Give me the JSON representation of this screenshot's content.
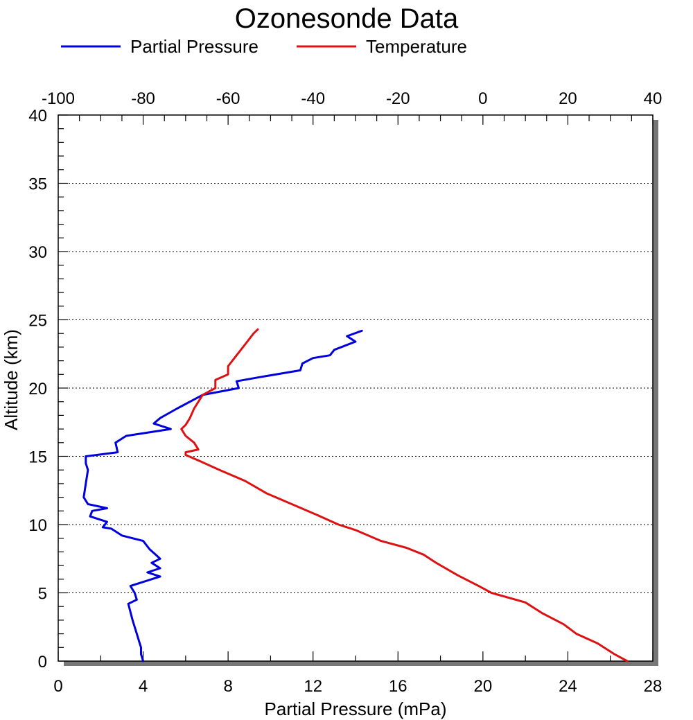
{
  "chart_data": {
    "type": "line",
    "title": "Ozonesonde Data",
    "xlabel": "Partial Pressure (mPa)",
    "ylabel": "Altitude (km)",
    "xlim": [
      0,
      28
    ],
    "x2lim": [
      -100,
      40
    ],
    "ylim": [
      0,
      40
    ],
    "x_ticks": [
      "0",
      "4",
      "8",
      "12",
      "16",
      "20",
      "24",
      "28"
    ],
    "x2_ticks": [
      "-100",
      "-80",
      "-60",
      "-40",
      "-20",
      "0",
      "20",
      "40"
    ],
    "y_ticks": [
      "0",
      "5",
      "10",
      "15",
      "20",
      "25",
      "30",
      "35",
      "40"
    ],
    "grid": "horizontal dotted at major y ticks",
    "legend_position": "top-left",
    "series": [
      {
        "name": "Partial Pressure",
        "color": "#0000dd",
        "axis": "bottom",
        "points": [
          [
            4.0,
            0
          ],
          [
            3.9,
            0.5
          ],
          [
            3.9,
            1.0
          ],
          [
            3.8,
            1.5
          ],
          [
            3.7,
            2.0
          ],
          [
            3.5,
            3.0
          ],
          [
            3.3,
            4.2
          ],
          [
            3.7,
            4.5
          ],
          [
            3.6,
            5.0
          ],
          [
            3.4,
            5.5
          ],
          [
            4.8,
            6.2
          ],
          [
            4.2,
            6.5
          ],
          [
            4.8,
            6.8
          ],
          [
            4.4,
            7.2
          ],
          [
            4.8,
            7.5
          ],
          [
            4.3,
            8.2
          ],
          [
            4.0,
            8.8
          ],
          [
            3.0,
            9.2
          ],
          [
            2.5,
            9.7
          ],
          [
            2.1,
            9.8
          ],
          [
            2.3,
            10.2
          ],
          [
            1.5,
            10.6
          ],
          [
            1.6,
            11.0
          ],
          [
            2.3,
            11.2
          ],
          [
            1.4,
            11.5
          ],
          [
            1.2,
            12.0
          ],
          [
            1.3,
            13.0
          ],
          [
            1.4,
            14.0
          ],
          [
            1.3,
            14.5
          ],
          [
            1.3,
            15.0
          ],
          [
            2.8,
            15.3
          ],
          [
            2.7,
            16.0
          ],
          [
            3.2,
            16.5
          ],
          [
            5.3,
            17.0
          ],
          [
            4.5,
            17.4
          ],
          [
            4.8,
            17.8
          ],
          [
            5.6,
            18.5
          ],
          [
            6.8,
            19.5
          ],
          [
            8.5,
            20.0
          ],
          [
            8.4,
            20.5
          ],
          [
            9.5,
            20.8
          ],
          [
            11.4,
            21.3
          ],
          [
            11.5,
            21.8
          ],
          [
            12.0,
            22.2
          ],
          [
            12.8,
            22.4
          ],
          [
            13.0,
            22.8
          ],
          [
            14.0,
            23.4
          ],
          [
            13.6,
            23.8
          ],
          [
            14.3,
            24.2
          ]
        ]
      },
      {
        "name": "Temperature",
        "color": "#dd1111",
        "axis": "top",
        "points": [
          [
            34.0,
            0
          ],
          [
            31.0,
            0.5
          ],
          [
            27.0,
            1.3
          ],
          [
            22.0,
            2.0
          ],
          [
            19.0,
            2.7
          ],
          [
            14.0,
            3.5
          ],
          [
            10.0,
            4.3
          ],
          [
            2.0,
            5.0
          ],
          [
            -1.0,
            5.5
          ],
          [
            -6.0,
            6.3
          ],
          [
            -11.0,
            7.2
          ],
          [
            -14.0,
            7.8
          ],
          [
            -18.0,
            8.3
          ],
          [
            -24.0,
            8.8
          ],
          [
            -30.0,
            9.6
          ],
          [
            -34.0,
            10.0
          ],
          [
            -39.0,
            10.7
          ],
          [
            -45.0,
            11.5
          ],
          [
            -51.0,
            12.3
          ],
          [
            -56.0,
            13.2
          ],
          [
            -62.0,
            14.0
          ],
          [
            -67.0,
            14.7
          ],
          [
            -70.0,
            15.1
          ],
          [
            -70.0,
            15.3
          ],
          [
            -67.0,
            15.5
          ],
          [
            -68.0,
            16.0
          ],
          [
            -70.0,
            16.5
          ],
          [
            -71.0,
            17.0
          ],
          [
            -70.0,
            17.3
          ],
          [
            -69.0,
            17.8
          ],
          [
            -68.0,
            18.5
          ],
          [
            -66.0,
            19.5
          ],
          [
            -63.0,
            20.0
          ],
          [
            -63.0,
            20.6
          ],
          [
            -60.0,
            21.0
          ],
          [
            -60.0,
            21.6
          ],
          [
            -58.0,
            22.4
          ],
          [
            -56.0,
            23.2
          ],
          [
            -54.0,
            24.0
          ],
          [
            -53.0,
            24.3
          ]
        ]
      }
    ]
  }
}
